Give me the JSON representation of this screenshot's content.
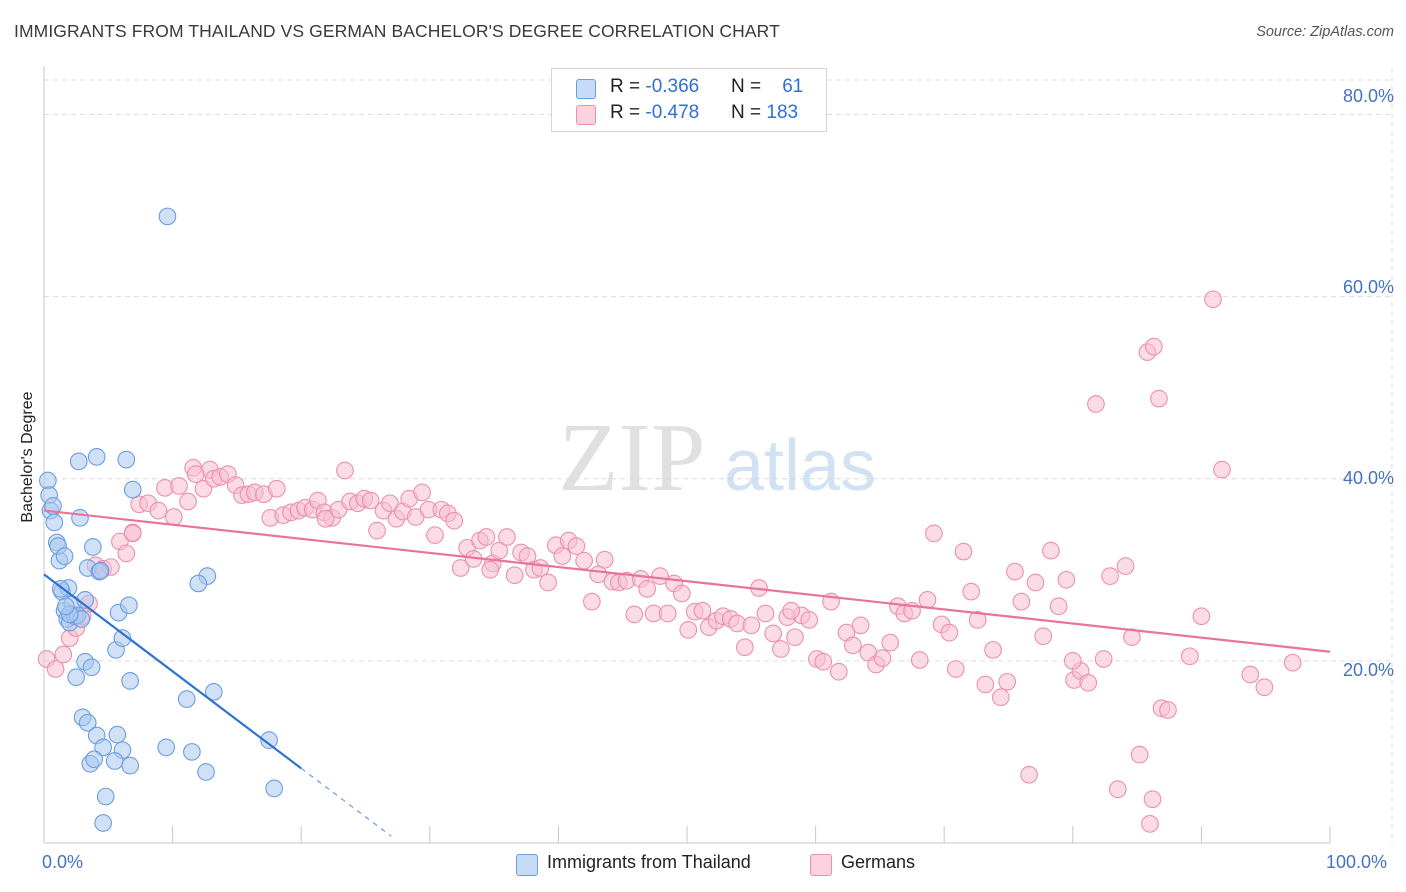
{
  "title": "IMMIGRANTS FROM THAILAND VS GERMAN BACHELOR'S DEGREE CORRELATION CHART",
  "source": "Source: ZipAtlas.com",
  "watermark": {
    "zip": "ZIP",
    "atlas": "atlas"
  },
  "legend": [
    {
      "r_label": "R = ",
      "r_value": "-0.366",
      "n_label": "N = ",
      "n_value": "61",
      "color": "#a9c8f0",
      "stroke": "#6b9de0"
    },
    {
      "r_label": "R = ",
      "r_value": "-0.478",
      "n_label": "N = ",
      "n_value": "183",
      "color": "#f7bfd0",
      "stroke": "#ec8fae"
    }
  ],
  "bottom_legend": [
    "Immigrants from Thailand",
    "Germans"
  ],
  "chart_data": {
    "type": "scatter",
    "title": "IMMIGRANTS FROM THAILAND VS GERMAN BACHELOR'S DEGREE CORRELATION CHART",
    "xlabel": "",
    "ylabel": "Bachelor's Degree",
    "xlim": [
      0,
      100
    ],
    "ylim": [
      0,
      84
    ],
    "x_tick_labels": [
      "0.0%",
      "100.0%"
    ],
    "y_ticks": [
      20,
      40,
      60,
      80
    ],
    "y_tick_labels": [
      "20.0%",
      "40.0%",
      "60.0%",
      "80.0%"
    ],
    "grid": true,
    "series": [
      {
        "name": "Immigrants from Thailand",
        "color": "#a9c8f0",
        "stroke": "#6b9de0",
        "trend": {
          "x0": 0,
          "y0": 29.5,
          "x1": 20,
          "y1": 8.2,
          "dash_to_x": 27,
          "color": "#2f74d0"
        },
        "points": [
          [
            0.3,
            39.8
          ],
          [
            0.4,
            38.2
          ],
          [
            0.5,
            36.5
          ],
          [
            0.8,
            35.2
          ],
          [
            1.0,
            33.0
          ],
          [
            1.2,
            31.0
          ],
          [
            1.4,
            27.6
          ],
          [
            1.6,
            25.5
          ],
          [
            1.8,
            24.6
          ],
          [
            2.0,
            24.2
          ],
          [
            2.2,
            26.2
          ],
          [
            2.4,
            24.9
          ],
          [
            1.1,
            32.6
          ],
          [
            1.6,
            31.5
          ],
          [
            1.9,
            28.0
          ],
          [
            0.7,
            37.0
          ],
          [
            2.7,
            41.9
          ],
          [
            2.8,
            35.7
          ],
          [
            3.4,
            30.2
          ],
          [
            3.8,
            32.5
          ],
          [
            4.3,
            29.8
          ],
          [
            4.1,
            42.4
          ],
          [
            3.2,
            26.7
          ],
          [
            2.6,
            25.0
          ],
          [
            2.9,
            24.6
          ],
          [
            2.5,
            18.2
          ],
          [
            3.2,
            19.9
          ],
          [
            3.7,
            19.3
          ],
          [
            3.0,
            13.8
          ],
          [
            3.4,
            13.2
          ],
          [
            4.1,
            11.8
          ],
          [
            4.6,
            10.5
          ],
          [
            5.7,
            11.9
          ],
          [
            6.1,
            10.2
          ],
          [
            3.6,
            8.7
          ],
          [
            3.9,
            9.2
          ],
          [
            5.5,
            9.0
          ],
          [
            6.7,
            8.5
          ],
          [
            4.8,
            5.1
          ],
          [
            4.6,
            2.2
          ],
          [
            5.6,
            21.2
          ],
          [
            5.8,
            25.3
          ],
          [
            6.1,
            22.5
          ],
          [
            6.4,
            42.1
          ],
          [
            6.9,
            38.8
          ],
          [
            6.6,
            26.1
          ],
          [
            6.7,
            17.8
          ],
          [
            9.5,
            10.5
          ],
          [
            11.1,
            15.8
          ],
          [
            11.5,
            10.0
          ],
          [
            12.6,
            7.8
          ],
          [
            12.7,
            29.3
          ],
          [
            13.2,
            16.6
          ],
          [
            17.5,
            11.3
          ],
          [
            17.9,
            6.0
          ],
          [
            9.6,
            68.8
          ],
          [
            12.0,
            28.5
          ],
          [
            2.0,
            25.1
          ],
          [
            4.4,
            29.9
          ],
          [
            1.7,
            26.0
          ],
          [
            1.3,
            27.9
          ]
        ]
      },
      {
        "name": "Germans",
        "color": "#f7bfd0",
        "stroke": "#ec8fae",
        "trend": {
          "x0": 0,
          "y0": 36.5,
          "x1": 100,
          "y1": 21.0,
          "color": "#e8749b"
        },
        "points": [
          [
            0.2,
            20.2
          ],
          [
            0.9,
            19.1
          ],
          [
            1.5,
            20.7
          ],
          [
            2.0,
            22.5
          ],
          [
            2.5,
            23.6
          ],
          [
            3.0,
            24.9
          ],
          [
            3.5,
            26.3
          ],
          [
            4.0,
            30.5
          ],
          [
            4.6,
            30.1
          ],
          [
            5.2,
            30.3
          ],
          [
            5.9,
            33.1
          ],
          [
            6.4,
            31.8
          ],
          [
            6.9,
            34.1
          ],
          [
            7.4,
            37.2
          ],
          [
            8.1,
            37.3
          ],
          [
            8.9,
            36.5
          ],
          [
            9.4,
            39.0
          ],
          [
            10.1,
            35.8
          ],
          [
            10.5,
            39.2
          ],
          [
            11.2,
            37.5
          ],
          [
            11.6,
            41.2
          ],
          [
            12.4,
            38.9
          ],
          [
            12.9,
            41.0
          ],
          [
            13.2,
            40.0
          ],
          [
            13.7,
            40.2
          ],
          [
            14.3,
            40.5
          ],
          [
            14.9,
            39.3
          ],
          [
            15.4,
            38.2
          ],
          [
            15.9,
            38.3
          ],
          [
            16.4,
            38.5
          ],
          [
            17.1,
            38.3
          ],
          [
            17.6,
            35.7
          ],
          [
            18.1,
            38.9
          ],
          [
            18.6,
            36.0
          ],
          [
            19.2,
            36.3
          ],
          [
            19.8,
            36.5
          ],
          [
            20.3,
            36.8
          ],
          [
            20.9,
            36.6
          ],
          [
            21.3,
            37.6
          ],
          [
            21.8,
            36.3
          ],
          [
            22.4,
            35.7
          ],
          [
            22.9,
            36.6
          ],
          [
            23.4,
            40.9
          ],
          [
            23.8,
            37.5
          ],
          [
            24.4,
            37.3
          ],
          [
            24.9,
            37.8
          ],
          [
            25.4,
            37.6
          ],
          [
            25.9,
            34.3
          ],
          [
            26.4,
            36.5
          ],
          [
            26.9,
            37.3
          ],
          [
            27.4,
            35.6
          ],
          [
            27.9,
            36.4
          ],
          [
            28.4,
            37.8
          ],
          [
            28.9,
            35.8
          ],
          [
            29.4,
            38.5
          ],
          [
            29.9,
            36.6
          ],
          [
            30.4,
            33.8
          ],
          [
            30.9,
            36.6
          ],
          [
            31.4,
            36.2
          ],
          [
            31.9,
            35.4
          ],
          [
            32.4,
            30.2
          ],
          [
            32.9,
            32.4
          ],
          [
            33.4,
            31.2
          ],
          [
            33.9,
            33.2
          ],
          [
            34.4,
            33.6
          ],
          [
            34.9,
            30.7
          ],
          [
            35.4,
            32.1
          ],
          [
            36.0,
            33.6
          ],
          [
            36.6,
            29.4
          ],
          [
            37.1,
            31.9
          ],
          [
            37.6,
            31.5
          ],
          [
            38.1,
            30.0
          ],
          [
            38.6,
            30.2
          ],
          [
            39.2,
            28.6
          ],
          [
            39.8,
            32.7
          ],
          [
            40.3,
            31.5
          ],
          [
            40.8,
            33.2
          ],
          [
            41.4,
            32.6
          ],
          [
            42.0,
            31.0
          ],
          [
            42.6,
            26.5
          ],
          [
            43.1,
            29.5
          ],
          [
            43.6,
            31.1
          ],
          [
            44.2,
            28.7
          ],
          [
            44.7,
            28.6
          ],
          [
            45.3,
            28.8
          ],
          [
            45.9,
            25.1
          ],
          [
            46.4,
            29.0
          ],
          [
            46.9,
            27.9
          ],
          [
            47.4,
            25.2
          ],
          [
            47.9,
            29.3
          ],
          [
            48.5,
            25.2
          ],
          [
            49.0,
            28.5
          ],
          [
            49.6,
            27.4
          ],
          [
            50.1,
            23.4
          ],
          [
            50.6,
            25.4
          ],
          [
            51.2,
            25.5
          ],
          [
            51.7,
            23.7
          ],
          [
            52.3,
            24.4
          ],
          [
            52.8,
            24.9
          ],
          [
            53.4,
            24.6
          ],
          [
            53.9,
            24.1
          ],
          [
            54.5,
            21.5
          ],
          [
            55.0,
            23.9
          ],
          [
            55.6,
            28.0
          ],
          [
            56.1,
            25.2
          ],
          [
            56.7,
            23.0
          ],
          [
            57.3,
            21.3
          ],
          [
            57.8,
            24.8
          ],
          [
            58.4,
            22.6
          ],
          [
            58.9,
            25.0
          ],
          [
            59.5,
            24.5
          ],
          [
            60.1,
            20.2
          ],
          [
            60.6,
            19.9
          ],
          [
            61.2,
            26.5
          ],
          [
            61.8,
            18.8
          ],
          [
            62.4,
            23.1
          ],
          [
            62.9,
            21.7
          ],
          [
            63.5,
            23.9
          ],
          [
            64.1,
            20.9
          ],
          [
            64.7,
            19.6
          ],
          [
            65.2,
            20.3
          ],
          [
            65.8,
            22.0
          ],
          [
            66.4,
            26.0
          ],
          [
            66.9,
            25.2
          ],
          [
            67.5,
            25.5
          ],
          [
            68.1,
            20.1
          ],
          [
            68.7,
            26.7
          ],
          [
            69.2,
            34.0
          ],
          [
            69.8,
            24.0
          ],
          [
            70.4,
            23.1
          ],
          [
            70.9,
            19.1
          ],
          [
            71.5,
            32.0
          ],
          [
            72.1,
            27.6
          ],
          [
            72.6,
            24.5
          ],
          [
            73.2,
            17.4
          ],
          [
            73.8,
            21.2
          ],
          [
            74.4,
            16.0
          ],
          [
            74.9,
            17.7
          ],
          [
            75.5,
            29.8
          ],
          [
            76.0,
            26.5
          ],
          [
            76.6,
            7.5
          ],
          [
            77.1,
            28.6
          ],
          [
            77.7,
            22.7
          ],
          [
            78.3,
            32.1
          ],
          [
            78.9,
            26.0
          ],
          [
            79.5,
            28.9
          ],
          [
            80.1,
            17.9
          ],
          [
            80.6,
            18.9
          ],
          [
            81.2,
            17.6
          ],
          [
            81.8,
            48.2
          ],
          [
            82.4,
            20.2
          ],
          [
            82.9,
            29.3
          ],
          [
            83.5,
            5.9
          ],
          [
            84.1,
            30.4
          ],
          [
            84.6,
            22.6
          ],
          [
            85.2,
            9.7
          ],
          [
            85.8,
            53.9
          ],
          [
            86.3,
            54.5
          ],
          [
            86.7,
            48.8
          ],
          [
            86.9,
            14.8
          ],
          [
            87.4,
            14.6
          ],
          [
            86.0,
            2.1
          ],
          [
            86.2,
            4.8
          ],
          [
            89.1,
            20.5
          ],
          [
            90.0,
            24.9
          ],
          [
            90.9,
            59.7
          ],
          [
            91.6,
            41.0
          ],
          [
            93.8,
            18.5
          ],
          [
            94.9,
            17.1
          ],
          [
            97.1,
            19.8
          ],
          [
            11.8,
            40.5
          ],
          [
            6.9,
            34.0
          ],
          [
            21.9,
            35.6
          ],
          [
            34.7,
            30.0
          ],
          [
            58.1,
            25.5
          ],
          [
            80.0,
            20.0
          ]
        ]
      }
    ]
  }
}
